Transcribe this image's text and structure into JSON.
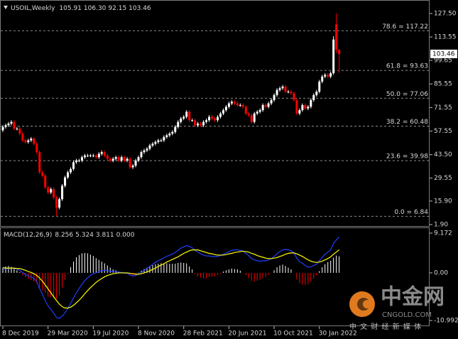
{
  "chart_data": [
    {
      "type": "candlestick",
      "title": "USOIL,Weekly",
      "ohlc_labels": [
        "105.91",
        "106.30",
        "92.15",
        "103.46"
      ],
      "categories": [
        "8 Dec 2019",
        null,
        null,
        null,
        null,
        null,
        null,
        null,
        null,
        null,
        null,
        null,
        null,
        null,
        null,
        null,
        "29 Mar 2020",
        null,
        null,
        null,
        null,
        null,
        null,
        null,
        null,
        null,
        null,
        null,
        null,
        null,
        null,
        null,
        "19 Jul 2020",
        null,
        null,
        null,
        null,
        null,
        null,
        null,
        null,
        null,
        null,
        null,
        null,
        null,
        null,
        null,
        "8 Nov 2020",
        null,
        null,
        null,
        null,
        null,
        null,
        null,
        null,
        null,
        null,
        null,
        null,
        null,
        null,
        null,
        "28 Feb 2021",
        null,
        null,
        null,
        null,
        null,
        null,
        null,
        null,
        null,
        null,
        null,
        null,
        null,
        null,
        null,
        "20 Jun 2021",
        null,
        null,
        null,
        null,
        null,
        null,
        null,
        null,
        null,
        null,
        null,
        null,
        null,
        null,
        null,
        "10 Oct 2021",
        null,
        null,
        null,
        null,
        null,
        null,
        null,
        null,
        null,
        null,
        null,
        null,
        null,
        null,
        null,
        "30 Jan 2022",
        null,
        null,
        null,
        null,
        null,
        null,
        null
      ],
      "open": [
        58,
        60,
        61,
        62,
        63,
        59,
        59,
        56,
        52,
        51,
        52,
        53,
        50,
        45,
        33,
        31,
        24,
        21,
        23,
        18,
        12,
        17,
        25,
        30,
        33,
        35,
        39,
        40,
        40,
        42,
        43,
        43,
        43,
        43,
        42,
        44,
        45,
        43,
        41,
        40,
        41,
        42,
        40,
        42,
        40,
        41,
        36,
        37,
        40,
        42,
        45,
        46,
        47,
        49,
        50,
        51,
        52,
        52,
        54,
        55,
        56,
        57,
        60,
        63,
        65,
        66,
        69,
        64,
        64,
        61,
        62,
        61,
        63,
        64,
        66,
        65,
        64,
        66,
        68,
        70,
        72,
        74,
        75,
        74,
        73,
        73,
        72,
        68,
        67,
        63,
        68,
        69,
        70,
        73,
        72,
        74,
        76,
        79,
        82,
        83,
        84,
        81,
        81,
        80,
        76,
        68,
        70,
        73,
        71,
        72,
        76,
        79,
        81,
        87,
        90,
        91,
        90,
        92,
        121,
        105.91
      ],
      "high": [
        61,
        62,
        63,
        64,
        64,
        60,
        60,
        57,
        53,
        53,
        54,
        54,
        51,
        46,
        34,
        32,
        25,
        24,
        24,
        19,
        18,
        26,
        31,
        34,
        36,
        40,
        41,
        41,
        43,
        44,
        44,
        44,
        44,
        44,
        45,
        46,
        46,
        44,
        42,
        42,
        43,
        43,
        43,
        43,
        42,
        42,
        38,
        41,
        43,
        46,
        47,
        48,
        50,
        51,
        52,
        53,
        53,
        55,
        56,
        57,
        58,
        61,
        64,
        66,
        67,
        70,
        70,
        65,
        65,
        63,
        63,
        64,
        65,
        67,
        67,
        66,
        67,
        69,
        71,
        73,
        75,
        76,
        76,
        75,
        74,
        74,
        73,
        69,
        68,
        69,
        70,
        71,
        74,
        74,
        75,
        77,
        80,
        83,
        84,
        85,
        85,
        82,
        82,
        81,
        77,
        71,
        74,
        74,
        73,
        77,
        80,
        82,
        88,
        91,
        92,
        92,
        93,
        114,
        127.5,
        106.3
      ],
      "low": [
        57,
        59,
        60,
        61,
        58,
        58,
        55,
        51,
        50,
        50,
        51,
        49,
        44,
        32,
        30,
        23,
        20,
        20,
        17,
        6.84,
        11,
        16,
        24,
        29,
        32,
        34,
        38,
        39,
        39,
        41,
        42,
        42,
        42,
        41,
        41,
        43,
        42,
        40,
        39,
        39,
        40,
        39,
        39,
        39,
        39,
        35,
        35,
        36,
        39,
        41,
        44,
        45,
        46,
        48,
        49,
        50,
        51,
        51,
        53,
        54,
        55,
        56,
        59,
        62,
        64,
        65,
        63,
        63,
        60,
        60,
        60,
        60,
        62,
        63,
        64,
        63,
        63,
        65,
        67,
        69,
        71,
        73,
        73,
        72,
        72,
        71,
        67,
        66,
        62,
        62,
        67,
        68,
        69,
        71,
        71,
        73,
        75,
        78,
        81,
        82,
        80,
        80,
        79,
        75,
        67,
        67,
        69,
        70,
        70,
        71,
        75,
        78,
        80,
        86,
        89,
        89,
        89,
        91,
        104,
        92.15
      ],
      "close": [
        60,
        61,
        62,
        63,
        59,
        59,
        56,
        52,
        51,
        52,
        53,
        50,
        45,
        33,
        31,
        24,
        21,
        23,
        18,
        12,
        17,
        25,
        30,
        33,
        35,
        39,
        40,
        40,
        42,
        43,
        43,
        43,
        43,
        42,
        44,
        45,
        43,
        41,
        40,
        41,
        42,
        40,
        42,
        40,
        41,
        36,
        37,
        40,
        42,
        45,
        46,
        47,
        49,
        50,
        51,
        52,
        52,
        54,
        55,
        56,
        57,
        60,
        63,
        65,
        66,
        69,
        64,
        64,
        61,
        62,
        61,
        63,
        64,
        66,
        65,
        64,
        66,
        68,
        70,
        72,
        74,
        75,
        74,
        73,
        73,
        72,
        68,
        67,
        63,
        68,
        69,
        70,
        73,
        72,
        74,
        76,
        79,
        82,
        83,
        84,
        81,
        81,
        80,
        76,
        68,
        70,
        73,
        71,
        72,
        76,
        79,
        81,
        87,
        90,
        91,
        90,
        92,
        112,
        106,
        103.46
      ],
      "up_color": "#ffffff",
      "down_color": "#ff0000",
      "ylim": [
        1.9,
        127.5
      ],
      "yticks": [
        {
          "value": 127.5,
          "label": "127.50"
        },
        {
          "value": 113.55,
          "label": "113.55"
        },
        {
          "value": 99.65,
          "label": "99.65"
        },
        {
          "value": 85.55,
          "label": "85.55"
        },
        {
          "value": 71.55,
          "label": "71.55"
        },
        {
          "value": 57.55,
          "label": "57.55"
        },
        {
          "value": 43.5,
          "label": "43.50"
        },
        {
          "value": 29.55,
          "label": "29.55"
        },
        {
          "value": 15.9,
          "label": "15.90"
        },
        {
          "value": 1.9,
          "label": "1.90"
        }
      ],
      "fib_levels": [
        {
          "value": 117.22,
          "label": "78.6 = 117.22"
        },
        {
          "value": 93.63,
          "label": "61.8 = 93.63"
        },
        {
          "value": 77.06,
          "label": "50.0 = 77.06"
        },
        {
          "value": 60.48,
          "label": "38.2 = 60.48"
        },
        {
          "value": 39.98,
          "label": "23.6 = 39.98"
        },
        {
          "value": 6.84,
          "label": "0.0 = 6.84"
        }
      ],
      "fib_color": "#8c8c8c"
    },
    {
      "type": "macd",
      "title": "MACD(12,26,9)",
      "header_values": [
        {
          "value": 8.256,
          "label": "8.256"
        },
        {
          "value": 5.324,
          "label": "5.324"
        },
        {
          "value": 3.811,
          "label": "3.811"
        },
        {
          "value": 0,
          "label": "0.000"
        }
      ],
      "macd": [
        0.8,
        0.9,
        1.0,
        1.1,
        1.0,
        0.9,
        0.6,
        0.1,
        -0.4,
        -0.7,
        -0.9,
        -1.3,
        -2.0,
        -3.6,
        -4.9,
        -6.4,
        -7.6,
        -8.4,
        -9.3,
        -10.3,
        -10.5,
        -10.0,
        -9.2,
        -8.2,
        -7.0,
        -5.8,
        -4.6,
        -3.6,
        -2.6,
        -1.8,
        -1.1,
        -0.6,
        -0.2,
        0.0,
        0.3,
        0.5,
        0.6,
        0.5,
        0.4,
        0.3,
        0.3,
        0.1,
        0.1,
        -0.1,
        -0.1,
        -0.5,
        -0.7,
        -0.6,
        -0.3,
        0.1,
        0.6,
        1.0,
        1.5,
        2.0,
        2.4,
        2.8,
        3.1,
        3.5,
        3.8,
        4.1,
        4.3,
        4.7,
        5.2,
        5.7,
        6.0,
        6.3,
        6.1,
        5.8,
        5.2,
        4.8,
        4.4,
        4.1,
        3.9,
        3.9,
        3.8,
        3.7,
        3.8,
        4.0,
        4.3,
        4.6,
        4.9,
        5.2,
        5.3,
        5.3,
        5.2,
        5.0,
        4.5,
        4.0,
        3.3,
        3.0,
        2.8,
        2.7,
        2.8,
        2.8,
        3.0,
        3.3,
        3.8,
        4.4,
        4.9,
        5.3,
        5.4,
        5.3,
        5.1,
        4.6,
        3.4,
        2.6,
        2.2,
        1.7,
        1.3,
        1.4,
        1.7,
        2.0,
        2.8,
        3.6,
        4.3,
        4.8,
        5.3,
        6.8,
        7.6,
        8.256
      ],
      "signal": [
        1.2,
        1.1,
        1.1,
        1.1,
        1.1,
        1.0,
        1.0,
        0.8,
        0.6,
        0.3,
        0.1,
        -0.2,
        -0.6,
        -1.2,
        -1.9,
        -2.8,
        -3.7,
        -4.6,
        -5.5,
        -6.4,
        -7.2,
        -7.8,
        -8.1,
        -8.1,
        -7.9,
        -7.5,
        -6.9,
        -6.3,
        -5.6,
        -4.8,
        -4.1,
        -3.4,
        -2.8,
        -2.2,
        -1.7,
        -1.3,
        -0.9,
        -0.6,
        -0.4,
        -0.2,
        -0.1,
        0.0,
        0.0,
        0.0,
        0.0,
        -0.1,
        -0.2,
        -0.3,
        -0.3,
        -0.2,
        0.0,
        0.2,
        0.5,
        0.8,
        1.1,
        1.5,
        1.8,
        2.1,
        2.5,
        2.8,
        3.1,
        3.4,
        3.7,
        4.1,
        4.5,
        4.8,
        5.1,
        5.3,
        5.3,
        5.3,
        5.1,
        4.9,
        4.7,
        4.5,
        4.4,
        4.2,
        4.1,
        4.1,
        4.1,
        4.2,
        4.4,
        4.5,
        4.7,
        4.8,
        4.9,
        5.0,
        4.9,
        4.8,
        4.5,
        4.3,
        4.0,
        3.8,
        3.6,
        3.4,
        3.3,
        3.3,
        3.4,
        3.5,
        3.8,
        4.0,
        4.3,
        4.5,
        4.6,
        4.6,
        4.4,
        4.1,
        3.8,
        3.4,
        3.0,
        2.7,
        2.5,
        2.4,
        2.5,
        2.7,
        3.0,
        3.3,
        3.7,
        4.3,
        4.8,
        5.324
      ],
      "histogram": [
        1.2,
        1.5,
        1.6,
        1.4,
        1.0,
        0.6,
        0.2,
        -0.5,
        -1.0,
        -1.4,
        -1.7,
        -2.0,
        -2.4,
        -3.5,
        -4.0,
        -4.6,
        -5.5,
        -5.6,
        -5.8,
        -6.0,
        -5.2,
        -3.4,
        -1.6,
        -0.2,
        1.3,
        2.6,
        3.6,
        4.1,
        4.5,
        4.6,
        4.5,
        4.2,
        3.9,
        3.4,
        3.0,
        2.6,
        2.2,
        1.7,
        1.2,
        0.8,
        0.6,
        0.3,
        0.2,
        0.1,
        -0.1,
        -0.4,
        -0.6,
        -0.5,
        0.1,
        0.5,
        0.9,
        1.2,
        1.5,
        1.8,
        2.0,
        2.1,
        2.2,
        2.2,
        2.2,
        2.1,
        2.1,
        2.1,
        2.3,
        2.4,
        2.3,
        2.2,
        1.5,
        0.8,
        -0.2,
        -0.8,
        -1.1,
        -1.3,
        -1.3,
        -1.0,
        -0.9,
        -0.8,
        -0.5,
        -0.2,
        0.3,
        0.6,
        0.8,
        1.0,
        0.9,
        0.8,
        0.5,
        0.0,
        -0.6,
        -1.2,
        -1.8,
        -2.0,
        -1.8,
        -1.6,
        -1.2,
        -0.9,
        -0.5,
        0.0,
        0.6,
        1.3,
        1.7,
        1.9,
        1.6,
        1.2,
        0.8,
        0.0,
        -1.5,
        -2.4,
        -2.7,
        -2.8,
        -2.6,
        -2.0,
        -1.3,
        -0.6,
        0.4,
        1.3,
        2.0,
        2.5,
        2.8,
        3.5,
        4.0,
        3.811
      ],
      "macd_color": "#1f3fff",
      "signal_color": "#ffff00",
      "hist_up_color": "#ffffff",
      "hist_down_color": "#ff0000",
      "ylim": [
        -10.992,
        9.172
      ],
      "yticks": [
        {
          "value": 9.172,
          "label": "9.172"
        },
        {
          "value": 0,
          "label": "0.00"
        },
        {
          "value": -10.992,
          "label": "-10.992"
        }
      ]
    }
  ],
  "watermark": {
    "brand": "中金网",
    "site": "CNGOLD.COM",
    "slogan": "中 文 财 经 新 媒 体"
  }
}
